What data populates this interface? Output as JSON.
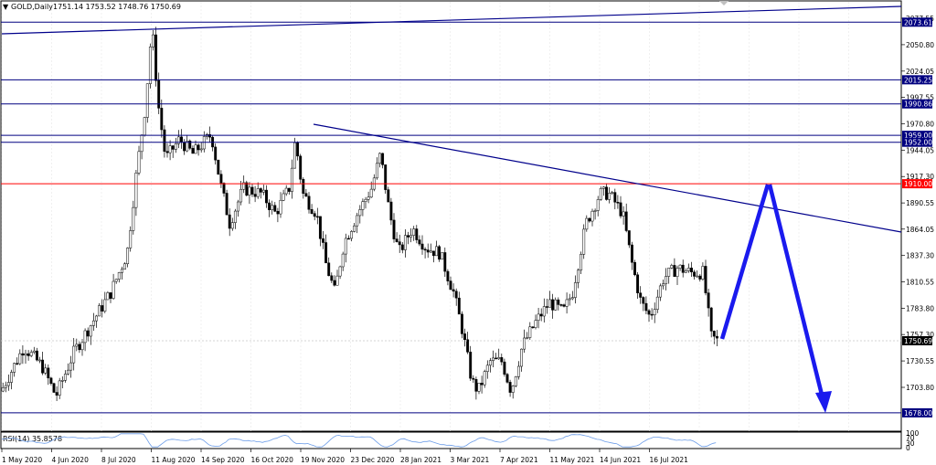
{
  "header": {
    "symbol": "GOLD,Daily",
    "ohlc": "1751.14 1753.52 1748.76 1750.69",
    "rsi_label": "RSI(14) 35.8578"
  },
  "price_axis": {
    "ticks": [
      "2077.55",
      "2050.80",
      "2024.05",
      "1997.55",
      "1970.80",
      "1944.05",
      "1917.30",
      "1890.55",
      "1864.05",
      "1837.30",
      "1810.55",
      "1783.80",
      "1757.30",
      "1730.55",
      "1703.80"
    ]
  },
  "rsi_axis": {
    "ticks": [
      "100",
      "70",
      "30",
      "0"
    ]
  },
  "time_axis": {
    "labels": [
      "1 May 2020",
      "4 Jun 2020",
      "8 Jul 2020",
      "11 Aug 2020",
      "14 Sep 2020",
      "16 Oct 2020",
      "19 Nov 2020",
      "23 Dec 2020",
      "28 Jan 2021",
      "3 Mar 2021",
      "7 Apr 2021",
      "11 May 2021",
      "14 Jun 2021",
      "16 Jul 2021"
    ]
  },
  "levels": [
    {
      "label": "2073.61",
      "value": 2073.61,
      "color": "#000080"
    },
    {
      "label": "2015.25",
      "value": 2015.25,
      "color": "#000080"
    },
    {
      "label": "1990.86",
      "value": 1990.86,
      "color": "#000080"
    },
    {
      "label": "1959.00",
      "value": 1959.0,
      "color": "#000080"
    },
    {
      "label": "1952.00",
      "value": 1952.0,
      "color": "#000080"
    },
    {
      "label": "1910.00",
      "value": 1910.0,
      "color": "#ff0000"
    },
    {
      "label": "1678.00",
      "value": 1678.0,
      "color": "#000080"
    }
  ],
  "current_price": {
    "label": "1750.69",
    "value": 1750.69
  },
  "colors": {
    "trend": "#00008b",
    "arrow": "#1a1aee",
    "level": "#000080",
    "support_red": "#ff0000",
    "grid": "#e0e0e0",
    "rsi": "#6b9ce8"
  },
  "chart_data": {
    "type": "candlestick",
    "symbol": "GOLD",
    "timeframe": "Daily",
    "x_range": [
      "1 May 2020",
      "16 Jul 2021"
    ],
    "y_range": [
      1680,
      2090
    ],
    "horizontal_levels": [
      2073.61,
      2015.25,
      1990.86,
      1959.0,
      1952.0,
      1910.0,
      1678.0
    ],
    "last_price": 1750.69,
    "projected_path": [
      1750.69,
      1910.0,
      1678.0
    ],
    "rsi": {
      "period": 14,
      "last": 35.8578,
      "ylim": [
        0,
        100
      ]
    }
  }
}
